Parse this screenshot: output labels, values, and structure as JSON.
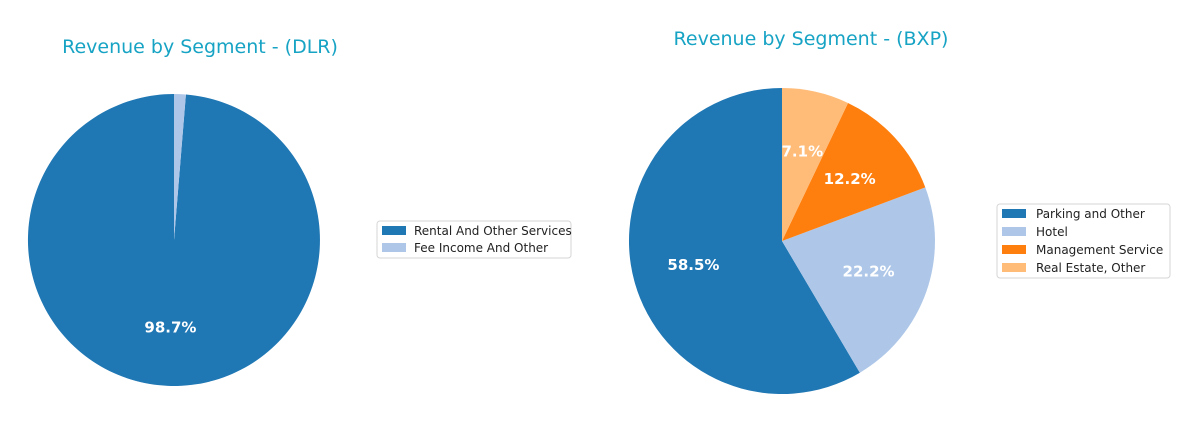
{
  "chart_data": [
    {
      "type": "pie",
      "title": "Revenue by Segment - (DLR)",
      "series": [
        {
          "name": "Rental And Other Services",
          "value": 98.7,
          "label": "98.7%",
          "color": "#1f77b4"
        },
        {
          "name": "Fee Income And Other",
          "value": 1.3,
          "label": "",
          "color": "#aec7e8"
        }
      ],
      "legend": "right",
      "start": "top",
      "direction": "counterclockwise"
    },
    {
      "type": "pie",
      "title": "Revenue by Segment - (BXP)",
      "series": [
        {
          "name": "Parking and Other",
          "value": 58.5,
          "label": "58.5%",
          "color": "#1f77b4"
        },
        {
          "name": "Hotel",
          "value": 22.2,
          "label": "22.2%",
          "color": "#aec7e8"
        },
        {
          "name": "Management Service",
          "value": 12.2,
          "label": "12.2%",
          "color": "#ff7f0e"
        },
        {
          "name": "Real Estate, Other",
          "value": 7.1,
          "label": "7.1%",
          "color": "#ffbb78"
        }
      ],
      "legend": "right",
      "start": "top",
      "direction": "counterclockwise"
    }
  ]
}
